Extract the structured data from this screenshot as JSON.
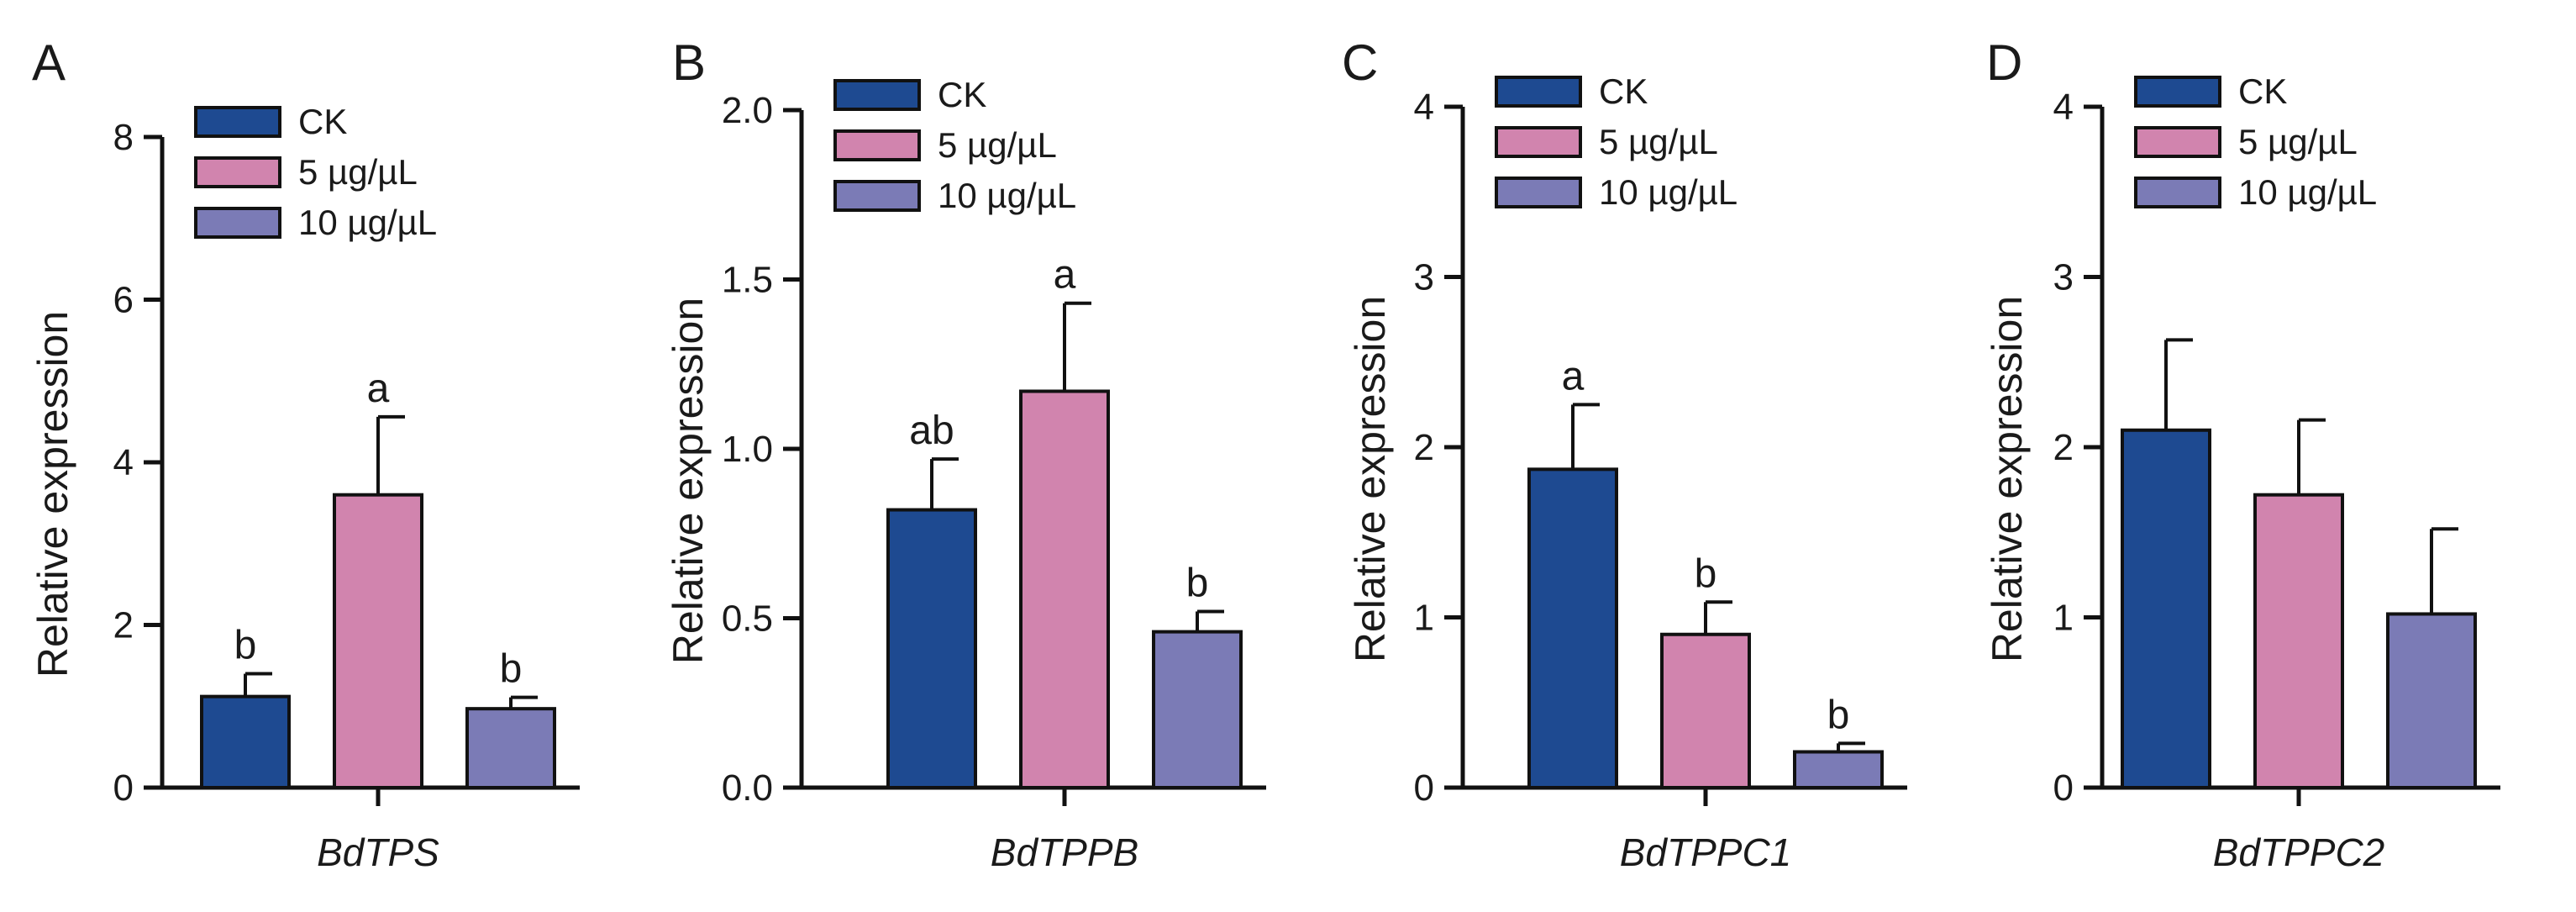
{
  "figure": {
    "legend_labels": [
      "CK",
      "5 µg/µL",
      "10 µg/µL"
    ],
    "colors": [
      "#1e4a91",
      "#d184ae",
      "#7b7bb6"
    ]
  },
  "chart_data": [
    {
      "panel": "A",
      "type": "bar",
      "title": "",
      "xlabel": "BdTPS",
      "ylabel": "Relative expression",
      "ylim": [
        0,
        8
      ],
      "yticks": [
        0,
        2,
        4,
        6,
        8
      ],
      "ytick_labels": [
        "0",
        "2",
        "4",
        "6",
        "8"
      ],
      "legend": "top-left",
      "grid": false,
      "series": [
        {
          "name": "CK",
          "value": 1.12,
          "error": 0.28,
          "label": "b"
        },
        {
          "name": "5 µg/µL",
          "value": 3.6,
          "error": 0.96,
          "label": "a"
        },
        {
          "name": "10 µg/µL",
          "value": 0.97,
          "error": 0.14,
          "label": "b"
        }
      ]
    },
    {
      "panel": "B",
      "type": "bar",
      "title": "",
      "xlabel": "BdTPPB",
      "ylabel": "Relative expression",
      "ylim": [
        0,
        2.0
      ],
      "yticks": [
        0,
        0.5,
        1.0,
        1.5,
        2.0
      ],
      "ytick_labels": [
        "0.0",
        "0.5",
        "1.0",
        "1.5",
        "2.0"
      ],
      "legend": "top-left",
      "grid": false,
      "series": [
        {
          "name": "CK",
          "value": 0.82,
          "error": 0.15,
          "label": "ab"
        },
        {
          "name": "5 µg/µL",
          "value": 1.17,
          "error": 0.26,
          "label": "a"
        },
        {
          "name": "10 µg/µL",
          "value": 0.46,
          "error": 0.06,
          "label": "b"
        }
      ]
    },
    {
      "panel": "C",
      "type": "bar",
      "title": "",
      "xlabel": "BdTPPC1",
      "ylabel": "Relative expression",
      "ylim": [
        0,
        4
      ],
      "yticks": [
        0,
        1,
        2,
        3,
        4
      ],
      "ytick_labels": [
        "0",
        "1",
        "2",
        "3",
        "4"
      ],
      "legend": "top-left",
      "grid": false,
      "series": [
        {
          "name": "CK",
          "value": 1.87,
          "error": 0.38,
          "label": "a"
        },
        {
          "name": "5 µg/µL",
          "value": 0.9,
          "error": 0.19,
          "label": "b"
        },
        {
          "name": "10 µg/µL",
          "value": 0.21,
          "error": 0.05,
          "label": "b"
        }
      ]
    },
    {
      "panel": "D",
      "type": "bar",
      "title": "",
      "xlabel": "BdTPPC2",
      "ylabel": "Relative expression",
      "ylim": [
        0,
        4
      ],
      "yticks": [
        0,
        1,
        2,
        3,
        4
      ],
      "ytick_labels": [
        "0",
        "1",
        "2",
        "3",
        "4"
      ],
      "legend": "top-left",
      "grid": false,
      "series": [
        {
          "name": "CK",
          "value": 2.1,
          "error": 0.53,
          "label": ""
        },
        {
          "name": "5 µg/µL",
          "value": 1.72,
          "error": 0.44,
          "label": ""
        },
        {
          "name": "10 µg/µL",
          "value": 1.02,
          "error": 0.5,
          "label": ""
        }
      ]
    }
  ]
}
